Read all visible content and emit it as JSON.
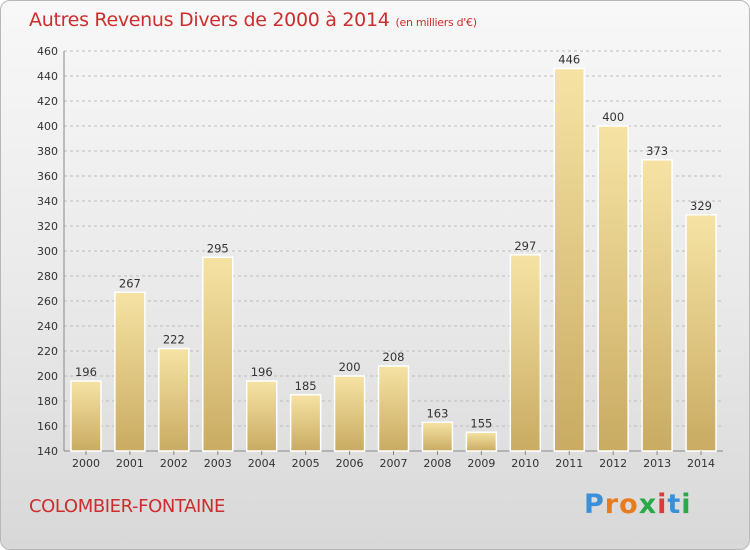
{
  "title": "Autres Revenus Divers de 2000 à 2014",
  "title_unit": "(en milliers d'€)",
  "commune": "COLOMBIER-FONTAINE",
  "logo": {
    "letters": [
      "P",
      "r",
      "o",
      "x",
      "i",
      "t",
      "i"
    ],
    "colors": [
      "#3a8fd9",
      "#e87b1e",
      "#e87b1e",
      "#2aa84a",
      "#d93a3a",
      "#3a8fd9",
      "#2aa84a"
    ]
  },
  "colors": {
    "bar_light": "#f6e3a4",
    "bar_dark": "#c9ab62",
    "grid": "#bdbdbd",
    "title": "#cc2e2e"
  },
  "chart_data": {
    "type": "bar",
    "title": "Autres Revenus Divers de 2000 à 2014",
    "categories": [
      "2000",
      "2001",
      "2002",
      "2003",
      "2004",
      "2005",
      "2006",
      "2007",
      "2008",
      "2009",
      "2010",
      "2011",
      "2012",
      "2013",
      "2014"
    ],
    "values": [
      196,
      267,
      222,
      295,
      196,
      185,
      200,
      208,
      163,
      155,
      297,
      446,
      400,
      373,
      329
    ],
    "ylim": [
      140,
      460
    ],
    "yticks": [
      140,
      160,
      180,
      200,
      220,
      240,
      260,
      280,
      300,
      320,
      340,
      360,
      380,
      400,
      420,
      440,
      460
    ],
    "grid": true
  }
}
